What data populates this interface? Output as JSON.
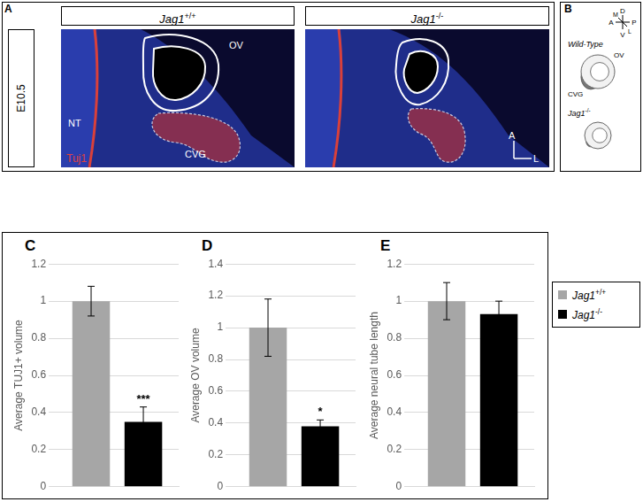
{
  "panel_a": {
    "label": "A",
    "stage": "E10.5",
    "genotypes": [
      "Jag1+/+",
      "Jag1-/-"
    ],
    "structures": {
      "otic_vesicle": "OV",
      "neural_tube": "NT",
      "ganglion": "CVG"
    },
    "stain": "Tuj1",
    "orientation": {
      "anterior": "A",
      "lateral": "L"
    }
  },
  "panel_b": {
    "label": "B",
    "conditions": [
      "Wild-Type",
      "Jag1-/-"
    ],
    "structures": {
      "otic_vesicle": "OV",
      "ganglion": "CVG"
    },
    "compass": {
      "medial": "M",
      "dorsal": "D",
      "anterior": "A",
      "posterior": "P",
      "ventral": "V",
      "lateral": "L"
    }
  },
  "chart_data": [
    {
      "type": "bar",
      "panel": "C",
      "y_label": "Average TUJ1+ volume",
      "categories": [
        null
      ],
      "ylim": [
        0,
        1.2
      ],
      "yticks": [
        0,
        0.2,
        0.4,
        0.6,
        0.8,
        1,
        1.2
      ],
      "grid": true,
      "series": [
        {
          "name": "Jag1+/+",
          "color": "#a6a6a6",
          "values": [
            1.0
          ],
          "error": [
            0.08
          ]
        },
        {
          "name": "Jag1-/-",
          "color": "#000000",
          "values": [
            0.35
          ],
          "error": [
            0.08
          ],
          "significance": "***"
        }
      ]
    },
    {
      "type": "bar",
      "panel": "D",
      "y_label": "Average OV volume",
      "categories": [
        null
      ],
      "ylim": [
        0,
        1.4
      ],
      "yticks": [
        0,
        0.2,
        0.4,
        0.6,
        0.8,
        1,
        1.2,
        1.4
      ],
      "grid": true,
      "series": [
        {
          "name": "Jag1+/+",
          "color": "#a6a6a6",
          "values": [
            1.0
          ],
          "error": [
            0.18
          ]
        },
        {
          "name": "Jag1-/-",
          "color": "#000000",
          "values": [
            0.38
          ],
          "error": [
            0.04
          ],
          "significance": "*"
        }
      ]
    },
    {
      "type": "bar",
      "panel": "E",
      "y_label": "Average neural tube length",
      "categories": [
        null
      ],
      "ylim": [
        0,
        1.2
      ],
      "yticks": [
        0,
        0.2,
        0.4,
        0.6,
        0.8,
        1,
        1.2
      ],
      "grid": true,
      "legend": "right",
      "series": [
        {
          "name": "Jag1+/+",
          "color": "#a6a6a6",
          "values": [
            1.0
          ],
          "error": [
            0.1
          ]
        },
        {
          "name": "Jag1-/-",
          "color": "#000000",
          "values": [
            0.93
          ],
          "error": [
            0.07
          ]
        }
      ]
    }
  ]
}
